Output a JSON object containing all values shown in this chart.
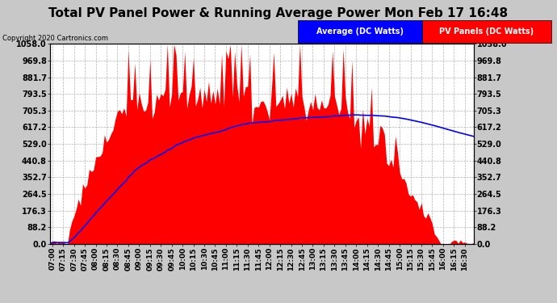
{
  "title": "Total PV Panel Power & Running Average Power Mon Feb 17 16:48",
  "copyright": "Copyright 2020 Cartronics.com",
  "y_max": 1058.0,
  "y_min": 0.0,
  "yticks": [
    0.0,
    88.2,
    176.3,
    264.5,
    352.7,
    440.8,
    529.0,
    617.2,
    705.3,
    793.5,
    881.7,
    969.8,
    1058.0
  ],
  "bg_color": "#c8c8c8",
  "plot_bg_color": "#ffffff",
  "grid_color": "#aaaaaa",
  "fill_color": "#ff0000",
  "line_color": "#0000ff",
  "title_fontsize": 11,
  "copyright_fontsize": 6,
  "legend_avg_label": "Average (DC Watts)",
  "legend_pv_label": "PV Panels (DC Watts)",
  "legend_fontsize": 7,
  "tick_fontsize": 6.5,
  "ytick_fontsize": 7
}
